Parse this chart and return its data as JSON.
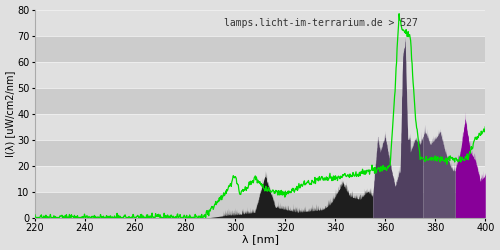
{
  "title": "lamps.licht-im-terrarium.de > 527",
  "xlabel": "λ [nm]",
  "ylabel": "I(λ) [uW/cm2/nm]",
  "xlim": [
    220,
    400
  ],
  "ylim": [
    0,
    80
  ],
  "xticks": [
    220,
    240,
    260,
    280,
    300,
    320,
    340,
    360,
    380,
    400
  ],
  "yticks": [
    0,
    10,
    20,
    30,
    40,
    50,
    60,
    70,
    80
  ],
  "bg_color": "#e0e0e0",
  "plot_bg_color_dark": "#cccccc",
  "plot_bg_color_light": "#e0e0e0",
  "grid_color": "#f0f0f0",
  "green_line_color": "#00dd00",
  "text_color": "#333333",
  "colors": {
    "290_355": "#1e1e1e",
    "355_375": "#504060",
    "375_388": "#605070",
    "388_400": "#880099"
  }
}
